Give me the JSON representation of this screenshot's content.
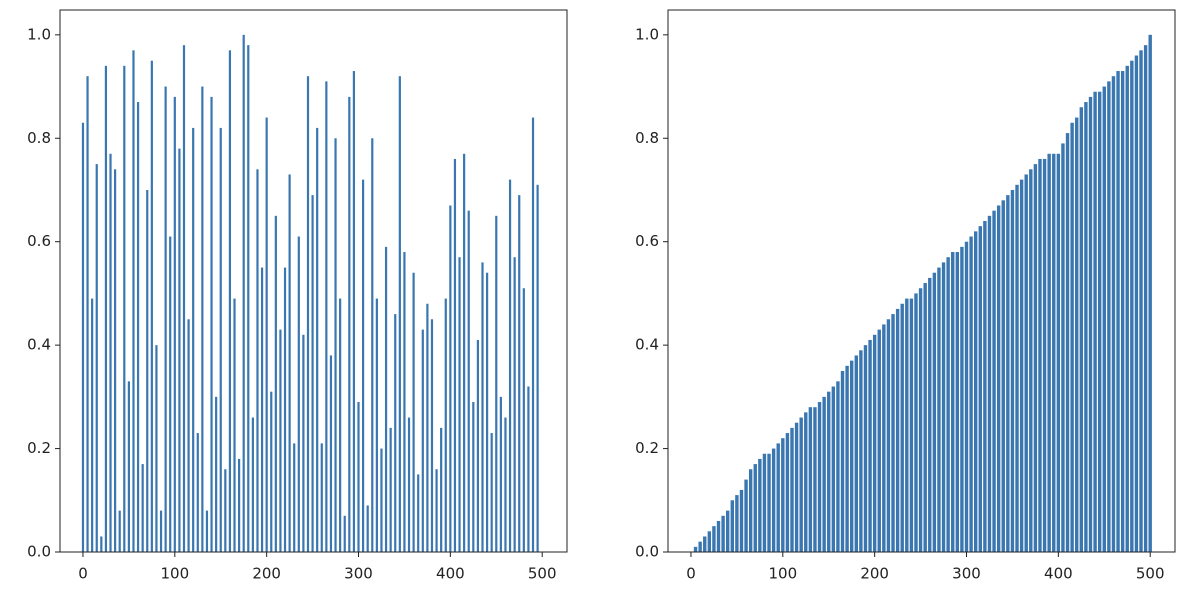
{
  "chart_data": [
    {
      "type": "bar",
      "color": "#3a76b0",
      "x": [
        0,
        5,
        10,
        15,
        20,
        25,
        30,
        35,
        40,
        45,
        50,
        55,
        60,
        65,
        70,
        75,
        80,
        85,
        90,
        95,
        100,
        105,
        110,
        115,
        120,
        125,
        130,
        135,
        140,
        145,
        150,
        155,
        160,
        165,
        170,
        175,
        180,
        185,
        190,
        195,
        200,
        205,
        210,
        215,
        220,
        225,
        230,
        235,
        240,
        245,
        250,
        255,
        260,
        265,
        270,
        275,
        280,
        285,
        290,
        295,
        300,
        305,
        310,
        315,
        320,
        325,
        330,
        335,
        340,
        345,
        350,
        355,
        360,
        365,
        370,
        375,
        380,
        385,
        390,
        395,
        400,
        405,
        410,
        415,
        420,
        425,
        430,
        435,
        440,
        445,
        450,
        455,
        460,
        465,
        470,
        475,
        480,
        485,
        490,
        495
      ],
      "values": [
        0.83,
        0.92,
        0.49,
        0.75,
        0.03,
        0.94,
        0.77,
        0.74,
        0.08,
        0.94,
        0.33,
        0.97,
        0.87,
        0.17,
        0.7,
        0.95,
        0.4,
        0.08,
        0.9,
        0.61,
        0.88,
        0.78,
        0.98,
        0.45,
        0.82,
        0.23,
        0.9,
        0.08,
        0.88,
        0.3,
        0.82,
        0.16,
        0.97,
        0.49,
        0.18,
        1.0,
        0.98,
        0.26,
        0.74,
        0.55,
        0.84,
        0.31,
        0.65,
        0.43,
        0.55,
        0.73,
        0.21,
        0.61,
        0.42,
        0.92,
        0.69,
        0.82,
        0.21,
        0.91,
        0.38,
        0.8,
        0.49,
        0.07,
        0.88,
        0.93,
        0.29,
        0.72,
        0.09,
        0.8,
        0.49,
        0.2,
        0.59,
        0.24,
        0.46,
        0.92,
        0.58,
        0.26,
        0.54,
        0.15,
        0.43,
        0.48,
        0.45,
        0.16,
        0.24,
        0.49,
        0.67,
        0.76,
        0.57,
        0.77,
        0.66,
        0.29,
        0.41,
        0.56,
        0.54,
        0.23,
        0.65,
        0.3,
        0.26,
        0.72,
        0.57,
        0.69,
        0.51,
        0.32,
        0.84,
        0.71
      ],
      "xlim": [
        -25,
        527
      ],
      "ylim": [
        0,
        1.048
      ],
      "xticks": [
        0,
        100,
        200,
        300,
        400,
        500
      ],
      "yticks": [
        {
          "value": 0,
          "label": "0.0"
        },
        {
          "value": 0.2,
          "label": "0.2"
        },
        {
          "value": 0.4,
          "label": "0.4"
        },
        {
          "value": 0.6,
          "label": "0.6"
        },
        {
          "value": 0.8,
          "label": "0.8"
        },
        {
          "value": 1.0,
          "label": "1.0"
        }
      ]
    },
    {
      "type": "bar",
      "color": "#3a76b0",
      "x": [
        0,
        5,
        10,
        15,
        20,
        25,
        30,
        35,
        40,
        45,
        50,
        55,
        60,
        65,
        70,
        75,
        80,
        85,
        90,
        95,
        100,
        105,
        110,
        115,
        120,
        125,
        130,
        135,
        140,
        145,
        150,
        155,
        160,
        165,
        170,
        175,
        180,
        185,
        190,
        195,
        200,
        205,
        210,
        215,
        220,
        225,
        230,
        235,
        240,
        245,
        250,
        255,
        260,
        265,
        270,
        275,
        280,
        285,
        290,
        295,
        300,
        305,
        310,
        315,
        320,
        325,
        330,
        335,
        340,
        345,
        350,
        355,
        360,
        365,
        370,
        375,
        380,
        385,
        390,
        395,
        400,
        405,
        410,
        415,
        420,
        425,
        430,
        435,
        440,
        445,
        450,
        455,
        460,
        465,
        470,
        475,
        480,
        485,
        490,
        495,
        500
      ],
      "values": [
        0.0,
        0.01,
        0.02,
        0.03,
        0.04,
        0.05,
        0.06,
        0.07,
        0.08,
        0.1,
        0.11,
        0.12,
        0.14,
        0.16,
        0.17,
        0.18,
        0.19,
        0.19,
        0.2,
        0.21,
        0.22,
        0.23,
        0.24,
        0.25,
        0.26,
        0.27,
        0.28,
        0.28,
        0.29,
        0.3,
        0.31,
        0.32,
        0.33,
        0.35,
        0.36,
        0.37,
        0.38,
        0.39,
        0.4,
        0.41,
        0.42,
        0.43,
        0.44,
        0.45,
        0.46,
        0.47,
        0.48,
        0.49,
        0.49,
        0.5,
        0.51,
        0.52,
        0.53,
        0.54,
        0.55,
        0.56,
        0.57,
        0.58,
        0.58,
        0.59,
        0.6,
        0.61,
        0.62,
        0.63,
        0.64,
        0.65,
        0.66,
        0.67,
        0.68,
        0.69,
        0.7,
        0.71,
        0.72,
        0.73,
        0.74,
        0.75,
        0.76,
        0.76,
        0.77,
        0.77,
        0.77,
        0.79,
        0.81,
        0.83,
        0.84,
        0.86,
        0.87,
        0.88,
        0.89,
        0.89,
        0.9,
        0.91,
        0.92,
        0.93,
        0.93,
        0.94,
        0.95,
        0.96,
        0.97,
        0.98,
        1.0
      ],
      "xlim": [
        -25,
        527
      ],
      "ylim": [
        0,
        1.048
      ],
      "xticks": [
        0,
        100,
        200,
        300,
        400,
        500
      ],
      "yticks": [
        {
          "value": 0,
          "label": "0.0"
        },
        {
          "value": 0.2,
          "label": "0.2"
        },
        {
          "value": 0.4,
          "label": "0.4"
        },
        {
          "value": 0.6,
          "label": "0.6"
        },
        {
          "value": 0.8,
          "label": "0.8"
        },
        {
          "value": 1.0,
          "label": "1.0"
        }
      ]
    }
  ]
}
